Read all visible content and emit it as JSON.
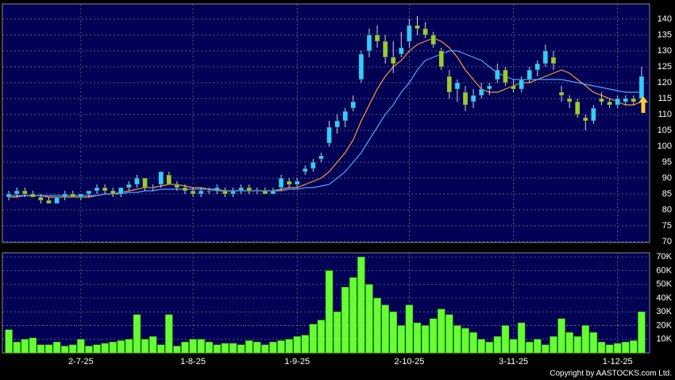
{
  "chart_data": [
    {
      "type": "candlestick",
      "ylim": [
        69.75,
        144.75
      ],
      "yticks": [
        70,
        75,
        80,
        85,
        90,
        95,
        100,
        105,
        110,
        115,
        120,
        125,
        130,
        135,
        140
      ],
      "xlim": [
        -0.8,
        80
      ],
      "xticks": [
        {
          "value": 9,
          "label": "2-7-25"
        },
        {
          "value": 23,
          "label": "1-8-25"
        },
        {
          "value": 36,
          "label": "1-9-25"
        },
        {
          "value": 50,
          "label": "2-10-25"
        },
        {
          "value": 63,
          "label": "3-11-25"
        },
        {
          "value": 76,
          "label": "1-12-25"
        }
      ],
      "grid": true,
      "up_color": "#33ccff",
      "down_color": "#99cc33",
      "ohlc": [
        [
          84,
          86,
          83,
          85
        ],
        [
          85,
          87,
          84,
          86
        ],
        [
          86,
          87,
          84,
          85
        ],
        [
          85,
          86,
          84,
          84
        ],
        [
          84,
          85,
          82,
          83
        ],
        [
          83,
          84,
          82,
          82
        ],
        [
          82,
          84,
          82,
          84
        ],
        [
          84,
          86,
          83,
          85
        ],
        [
          85,
          86,
          84,
          84
        ],
        [
          84,
          85,
          83,
          85
        ],
        [
          85,
          86,
          84,
          86
        ],
        [
          86,
          88,
          85,
          87
        ],
        [
          87,
          88,
          85,
          86
        ],
        [
          86,
          87,
          84,
          85
        ],
        [
          85,
          87,
          84,
          87
        ],
        [
          87,
          89,
          86,
          88
        ],
        [
          88,
          91,
          87,
          90
        ],
        [
          90,
          90,
          86,
          87
        ],
        [
          87,
          88,
          86,
          87
        ],
        [
          88,
          92,
          87,
          92
        ],
        [
          91,
          92,
          88,
          88
        ],
        [
          88,
          89,
          86,
          87
        ],
        [
          87,
          88,
          85,
          86
        ],
        [
          86,
          87,
          84,
          85
        ],
        [
          85,
          87,
          84,
          86
        ],
        [
          86,
          87,
          85,
          86
        ],
        [
          86,
          88,
          85,
          87
        ],
        [
          86,
          87,
          84,
          85
        ],
        [
          85,
          87,
          84,
          86
        ],
        [
          86,
          88,
          85,
          87
        ],
        [
          87,
          88,
          85,
          86
        ],
        [
          86,
          87,
          85,
          86
        ],
        [
          86,
          87,
          85,
          85
        ],
        [
          85,
          87,
          85,
          86
        ],
        [
          87,
          91,
          86,
          90
        ],
        [
          89,
          90,
          87,
          88
        ],
        [
          88,
          90,
          87,
          89
        ],
        [
          92,
          94,
          91,
          93
        ],
        [
          93,
          96,
          92,
          95
        ],
        [
          96,
          98,
          95,
          97
        ],
        [
          101,
          108,
          100,
          106
        ],
        [
          106,
          110,
          104,
          108
        ],
        [
          108,
          112,
          106,
          111
        ],
        [
          112,
          116,
          111,
          114
        ],
        [
          121,
          130,
          120,
          129
        ],
        [
          130,
          137,
          128,
          135
        ],
        [
          135,
          138,
          131,
          133
        ],
        [
          133,
          135,
          126,
          128
        ],
        [
          128,
          133,
          123,
          126
        ],
        [
          129,
          136,
          128,
          131
        ],
        [
          133,
          140,
          131,
          138
        ],
        [
          138,
          141,
          135,
          137
        ],
        [
          137,
          139,
          134,
          135
        ],
        [
          135,
          136,
          131,
          132
        ],
        [
          130,
          131,
          124,
          125
        ],
        [
          122,
          124,
          115,
          117
        ],
        [
          118,
          121,
          114,
          120
        ],
        [
          117,
          119,
          111,
          113
        ],
        [
          114,
          118,
          112,
          116
        ],
        [
          116,
          120,
          115,
          118
        ],
        [
          118,
          120,
          116,
          119
        ],
        [
          121,
          126,
          120,
          124
        ],
        [
          124,
          125,
          119,
          120
        ],
        [
          119,
          121,
          117,
          118
        ],
        [
          118,
          122,
          117,
          121
        ],
        [
          121,
          125,
          120,
          124
        ],
        [
          124,
          127,
          122,
          126
        ],
        [
          126,
          132,
          125,
          130
        ],
        [
          128,
          130,
          124,
          126
        ],
        [
          117,
          119,
          114,
          116
        ],
        [
          115,
          116,
          112,
          114
        ],
        [
          114,
          115,
          109,
          110
        ],
        [
          109,
          110,
          105,
          108
        ],
        [
          108,
          113,
          107,
          112
        ],
        [
          115,
          117,
          113,
          114
        ],
        [
          114,
          115,
          112,
          113
        ],
        [
          113,
          116,
          112,
          115
        ],
        [
          114,
          116,
          113,
          115
        ],
        [
          115,
          116,
          113,
          114
        ],
        [
          115,
          125,
          114,
          122
        ]
      ],
      "series": [
        {
          "color": "#ff9933",
          "values": [
            84,
            84,
            84.5,
            84.5,
            84.5,
            84,
            84,
            84,
            84,
            84,
            84,
            84.5,
            85,
            85,
            85.5,
            86,
            86.5,
            87,
            87,
            87.5,
            88,
            88,
            87.5,
            87,
            87,
            86.5,
            86,
            86,
            86,
            86,
            86,
            86,
            86,
            86,
            86.5,
            87,
            87,
            88,
            89,
            90,
            92,
            95,
            98,
            102,
            108,
            113,
            118,
            122,
            125,
            127,
            130,
            132,
            133,
            134,
            133,
            131,
            128,
            124,
            121,
            118,
            117,
            117,
            118,
            119,
            120,
            120,
            121,
            122,
            123,
            124,
            123,
            121,
            119,
            117,
            116,
            115,
            114,
            113,
            113,
            114
          ]
        },
        {
          "color": "#4da6ff",
          "values": [
            84.5,
            84.5,
            84.5,
            84.5,
            84.5,
            84.5,
            84.5,
            84.5,
            84.5,
            84.5,
            84.5,
            84.5,
            85,
            85,
            85,
            85.5,
            85.5,
            86,
            86,
            86.5,
            86.5,
            86.5,
            86.5,
            86.5,
            86.5,
            86.5,
            86.5,
            86,
            86,
            86,
            86,
            86,
            86,
            86,
            86,
            86.5,
            86.5,
            87,
            87,
            87.5,
            88,
            90,
            92,
            95,
            98,
            102,
            106,
            110,
            113,
            117,
            120,
            124,
            127,
            128,
            129,
            130,
            130,
            129,
            128,
            127,
            125,
            123,
            122,
            121,
            121,
            121,
            121,
            121,
            121,
            121,
            120.5,
            120,
            119.5,
            119,
            118.5,
            118,
            117.5,
            117,
            117,
            117
          ]
        }
      ]
    },
    {
      "type": "bar",
      "ylim": [
        0,
        73
      ],
      "yticks": [
        {
          "value": 10,
          "label": "10K"
        },
        {
          "value": 20,
          "label": "20K"
        },
        {
          "value": 30,
          "label": "30K"
        },
        {
          "value": 40,
          "label": "40K"
        },
        {
          "value": 50,
          "label": "50K"
        },
        {
          "value": 60,
          "label": "60K"
        },
        {
          "value": 70,
          "label": "70K"
        }
      ],
      "color": "#66ff33",
      "values": [
        17,
        8,
        10,
        11,
        6,
        6,
        8,
        5,
        6,
        10,
        5,
        6,
        7,
        8,
        9,
        10,
        28,
        10,
        12,
        6,
        28,
        5,
        8,
        10,
        10,
        8,
        6,
        7,
        7,
        6,
        9,
        8,
        6,
        8,
        9,
        10,
        12,
        13,
        21,
        24,
        60,
        30,
        48,
        55,
        70,
        50,
        40,
        35,
        30,
        20,
        35,
        22,
        20,
        25,
        32,
        28,
        20,
        18,
        15,
        10,
        8,
        12,
        20,
        10,
        22,
        8,
        10,
        6,
        12,
        25,
        15,
        12,
        20,
        15,
        8,
        6,
        7,
        8,
        9,
        30
      ],
      "copyright": "Copyright by AASTOCKS.com Ltd."
    }
  ]
}
